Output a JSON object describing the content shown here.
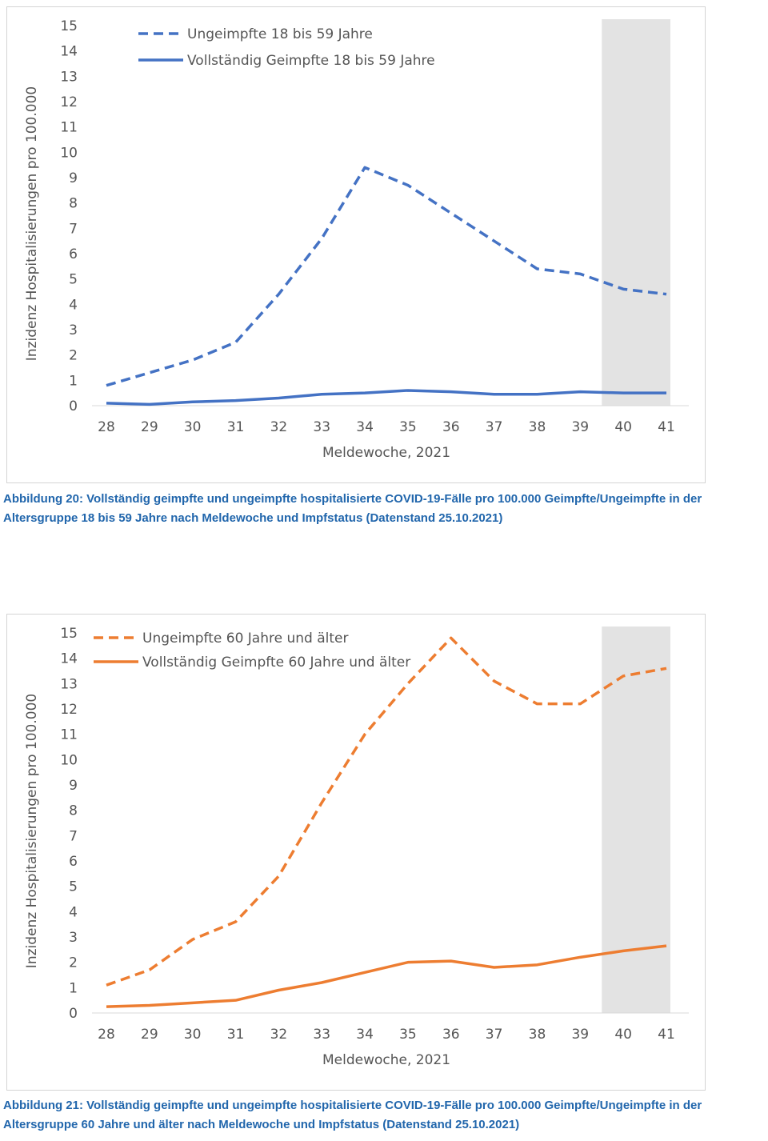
{
  "chart_data": [
    {
      "type": "line",
      "x": [
        28,
        29,
        30,
        31,
        32,
        33,
        34,
        35,
        36,
        37,
        38,
        39,
        40,
        41
      ],
      "series": [
        {
          "name": "Ungeimpfte 18 bis 59 Jahre",
          "style": "dashed",
          "color": "#4472c4",
          "values": [
            0.8,
            1.3,
            1.8,
            2.5,
            4.4,
            6.6,
            9.4,
            8.7,
            7.6,
            6.5,
            5.4,
            5.2,
            4.6,
            4.4
          ]
        },
        {
          "name": "Vollständig Geimpfte 18 bis 59 Jahre",
          "style": "solid",
          "color": "#4472c4",
          "values": [
            0.1,
            0.05,
            0.15,
            0.2,
            0.3,
            0.45,
            0.5,
            0.6,
            0.55,
            0.45,
            0.45,
            0.55,
            0.5,
            0.5
          ]
        }
      ],
      "xlabel": "Meldewoche, 2021",
      "ylabel": "Inzidenz Hospitalisierungen pro 100.000",
      "ylim": [
        0,
        15
      ],
      "yticks": [
        0,
        1,
        2,
        3,
        4,
        5,
        6,
        7,
        8,
        9,
        10,
        11,
        12,
        13,
        14,
        15
      ],
      "shaded_region": [
        39.5,
        41
      ],
      "grid": false,
      "legend_position": "top-left",
      "caption": "Abbildung 20: Vollständig geimpfte und ungeimpfte hospitalisierte COVID-19-Fälle pro 100.000 Geimpfte/Ungeimpfte in der Altersgruppe 18 bis 59 Jahre nach Meldewoche und Impfstatus (Datenstand 25.10.2021)"
    },
    {
      "type": "line",
      "x": [
        28,
        29,
        30,
        31,
        32,
        33,
        34,
        35,
        36,
        37,
        38,
        39,
        40,
        41
      ],
      "series": [
        {
          "name": "Ungeimpfte 60 Jahre und älter",
          "style": "dashed",
          "color": "#ed7d31",
          "values": [
            1.1,
            1.7,
            2.9,
            3.6,
            5.4,
            8.3,
            11.0,
            13.0,
            14.8,
            13.1,
            12.2,
            12.2,
            13.3,
            13.6
          ]
        },
        {
          "name": "Vollständig Geimpfte 60 Jahre und älter",
          "style": "solid",
          "color": "#ed7d31",
          "values": [
            0.25,
            0.3,
            0.4,
            0.5,
            0.9,
            1.2,
            1.6,
            2.0,
            2.05,
            1.8,
            1.9,
            2.2,
            2.45,
            2.65
          ]
        }
      ],
      "xlabel": "Meldewoche, 2021",
      "ylabel": "Inzidenz Hospitalisierungen pro 100.000",
      "ylim": [
        0,
        15
      ],
      "yticks": [
        0,
        1,
        2,
        3,
        4,
        5,
        6,
        7,
        8,
        9,
        10,
        11,
        12,
        13,
        14,
        15
      ],
      "shaded_region": [
        39.5,
        41
      ],
      "grid": false,
      "legend_position": "top-left",
      "caption": "Abbildung 21: Vollständig geimpfte und ungeimpfte hospitalisierte COVID-19-Fälle pro 100.000 Geimpfte/Ungeimpfte in der Altersgruppe 60 Jahre und älter nach Meldewoche und Impfstatus (Datenstand 25.10.2021)"
    }
  ]
}
